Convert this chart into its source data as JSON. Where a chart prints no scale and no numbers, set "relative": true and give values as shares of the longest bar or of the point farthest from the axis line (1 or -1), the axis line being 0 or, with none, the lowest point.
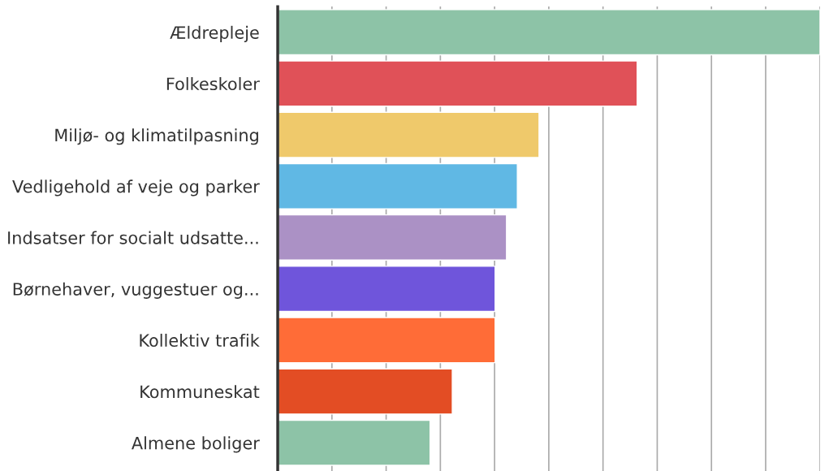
{
  "chart_data": {
    "type": "bar",
    "orientation": "horizontal",
    "relative": true,
    "grid": "x",
    "categories": [
      "Ældrepleje",
      "Folkeskoler",
      "Miljø- og klimatilpasning",
      "Vedligehold af veje og parker",
      "Indsatser for socialt udsatte...",
      "Børnehaver, vuggestuer og...",
      "Kollektiv trafik",
      "Kommuneskat",
      "Almene boliger"
    ],
    "values": [
      1,
      0.663,
      0.482,
      0.442,
      0.422,
      0.401,
      0.401,
      0.322,
      0.281
    ],
    "colors": [
      "#8dc3a7",
      "#e05158",
      "#efc96b",
      "#60b8e4",
      "#ab91c5",
      "#6f55db",
      "#ff6c37",
      "#e34d24",
      "#8dc3a7"
    ]
  }
}
